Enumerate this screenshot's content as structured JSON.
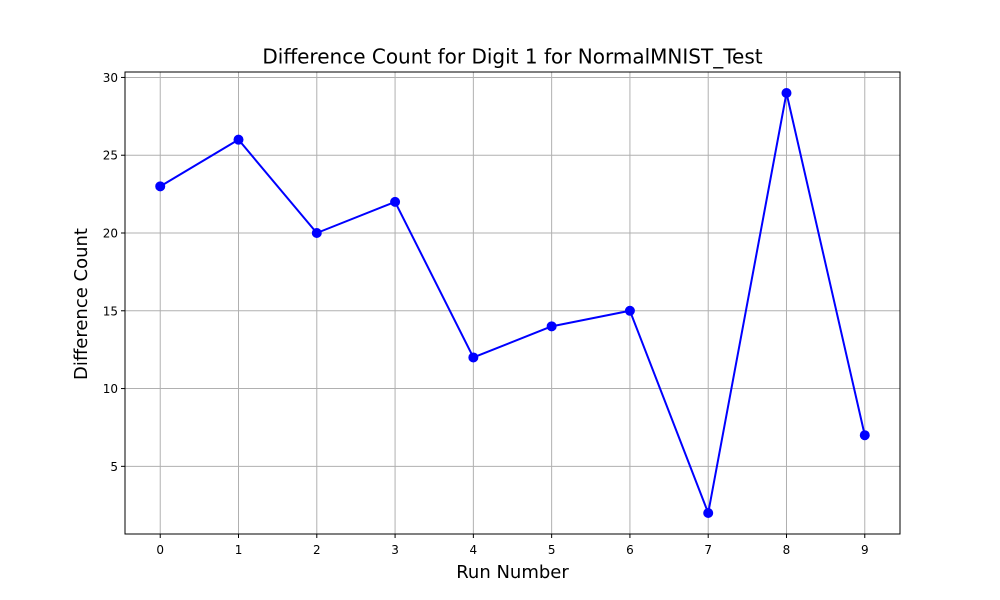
{
  "chart_data": {
    "type": "line",
    "title": "Difference Count for Digit 1 for NormalMNIST_Test",
    "xlabel": "Run Number",
    "ylabel": "Difference Count",
    "x": [
      0,
      1,
      2,
      3,
      4,
      5,
      6,
      7,
      8,
      9
    ],
    "series": [
      {
        "values": [
          23,
          26,
          20,
          22,
          12,
          14,
          15,
          2,
          29,
          7
        ],
        "color": "#0000ff",
        "marker": "circle"
      }
    ],
    "xticks": [
      0,
      1,
      2,
      3,
      4,
      5,
      6,
      7,
      8,
      9
    ],
    "yticks": [
      5,
      10,
      15,
      20,
      25,
      30
    ],
    "xlim": [
      -0.45,
      9.45
    ],
    "ylim": [
      0.65,
      30.35
    ],
    "grid": true,
    "legend": false
  }
}
